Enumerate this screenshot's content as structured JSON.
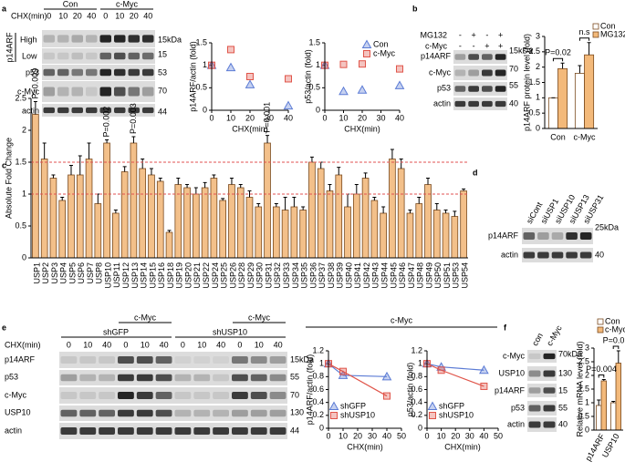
{
  "panel_labels": [
    "a",
    "b",
    "c",
    "d",
    "e",
    "f"
  ],
  "blots": {
    "a": {
      "groups": [
        "Con",
        "c-Myc"
      ],
      "chx_label": "CHX(min)",
      "lanes": [
        "0",
        "10",
        "20",
        "40",
        "0",
        "10",
        "20",
        "40"
      ],
      "row_group": "p14ARF",
      "rows": [
        "High",
        "Low",
        "p53",
        "c-Myc",
        "actin"
      ],
      "kda": [
        "15kDa",
        "15",
        "53",
        "70",
        "44"
      ]
    },
    "b": {
      "treatments": [
        {
          "label": "MG132",
          "signs": [
            "-",
            "+",
            "-",
            "+"
          ]
        },
        {
          "label": "c-Myc",
          "signs": [
            "-",
            "-",
            "+",
            "+"
          ]
        }
      ],
      "rows": [
        "p14ARF",
        "c-Myc",
        "p53",
        "actin"
      ],
      "kda": [
        "15kDa",
        "70",
        "55",
        "40"
      ]
    },
    "d": {
      "lanes": [
        "siCont",
        "siUSP1",
        "siUSP10",
        "siUSP13",
        "siUSP31"
      ],
      "rows": [
        "p14ARF",
        "actin"
      ],
      "kda": [
        "25kDa",
        "40"
      ]
    },
    "e": {
      "treatments": [
        "c-Myc",
        "c-Myc"
      ],
      "groups": [
        "shGFP",
        "shUSP10"
      ],
      "chx_label": "CHX(min)",
      "lanes": [
        "0",
        "10",
        "40",
        "0",
        "10",
        "40",
        "0",
        "10",
        "40",
        "0",
        "10",
        "40"
      ],
      "rows": [
        "p14ARF",
        "p53",
        "c-Myc",
        "USP10",
        "actin"
      ],
      "kda": [
        "15kDa",
        "55",
        "70",
        "130",
        "44"
      ],
      "chart_header": "c-Myc"
    },
    "f": {
      "lanes": [
        "con",
        "c-Myc"
      ],
      "rows": [
        "c-Myc",
        "USP10",
        "p14ARF",
        "p53",
        "actin"
      ],
      "kda": [
        "70kDa",
        "130",
        "15",
        "55",
        "40"
      ]
    }
  },
  "chart_data": [
    {
      "type": "scatter",
      "y_label": "p14ARF/actin (fold)",
      "x_label": "CHX(min)",
      "x": [
        0,
        10,
        20,
        40
      ],
      "series": [
        {
          "marker": "triangle",
          "color": "#5b7bd5",
          "values": [
            1,
            0.95,
            0.57,
            0.1
          ]
        },
        {
          "marker": "square",
          "color": "#e0554a",
          "values": [
            1,
            1.35,
            0.75,
            0.7
          ]
        }
      ],
      "xlim": [
        0,
        40
      ],
      "xticks": [
        0,
        10,
        20,
        30,
        40
      ],
      "ylim": [
        0,
        1.5
      ],
      "yticks": [
        0,
        0.5,
        1,
        1.5
      ]
    },
    {
      "type": "scatter",
      "y_label": "p53/actin (fold)",
      "x_label": "CHX(min)",
      "x": [
        0,
        10,
        20,
        40
      ],
      "series": [
        {
          "name": "Con",
          "marker": "triangle",
          "color": "#5b7bd5",
          "values": [
            1,
            0.42,
            0.45,
            0.55
          ]
        },
        {
          "name": "c-Myc",
          "marker": "square",
          "color": "#e0554a",
          "values": [
            1,
            1.02,
            1.03,
            0.92
          ]
        }
      ],
      "xlim": [
        0,
        40
      ],
      "xticks": [
        0,
        10,
        20,
        30,
        40
      ],
      "ylim": [
        0,
        1.5
      ],
      "yticks": [
        0,
        0.5,
        1,
        1.5
      ],
      "legend": "upper right"
    },
    {
      "type": "bar",
      "y_label": "p14ARF protein level (fold)",
      "categories": [
        "Con",
        "c-Myc"
      ],
      "series": [
        {
          "name": "Con",
          "color": "#ffffff",
          "values": [
            1,
            1.8
          ],
          "errors": [
            0,
            0.25
          ]
        },
        {
          "name": "MG132",
          "color": "#f3b97a",
          "values": [
            1.95,
            2.4
          ],
          "errors": [
            0.18,
            0.4
          ]
        }
      ],
      "ylim": [
        0,
        3
      ],
      "yticks": [
        0,
        0.5,
        1,
        1.5,
        2,
        2.5,
        3
      ],
      "legend": "upper right",
      "annotations": [
        {
          "text": "P=0.02",
          "category": "Con"
        },
        {
          "text": "n.s",
          "category": "c-Myc"
        }
      ]
    },
    {
      "type": "bar",
      "y_label": "Absolute Fold Change",
      "color": "#f3c08a",
      "categories": [
        "USP1",
        "USP2",
        "USP3",
        "USP4",
        "USP5",
        "USP6",
        "USP7",
        "USP8",
        "USP10",
        "USP11",
        "USP12",
        "USP13",
        "USP14",
        "USP15",
        "USP16",
        "USP18",
        "USP19",
        "USP20",
        "USP21",
        "USP22",
        "USP24",
        "USP25",
        "USP26",
        "USP28",
        "USP29",
        "USP30",
        "USP31",
        "USP32",
        "USP33",
        "USP34",
        "USP35",
        "USP36",
        "USP37",
        "USP38",
        "USP39",
        "USP40",
        "USP41",
        "USP42",
        "USP43",
        "USP44",
        "USP45",
        "USP46",
        "USP47",
        "USP48",
        "USP49",
        "USP50",
        "USP51",
        "USP53",
        "USP54"
      ],
      "values": [
        2.25,
        1.55,
        1.25,
        0.9,
        1.3,
        1.3,
        1.55,
        0.85,
        1.8,
        0.7,
        1.35,
        1.8,
        1.4,
        1.3,
        1.2,
        0.4,
        1.15,
        1.1,
        1.0,
        1.1,
        1.25,
        0.9,
        1.15,
        1.1,
        0.95,
        0.8,
        1.8,
        0.8,
        0.75,
        0.8,
        0.75,
        1.5,
        1.4,
        1.05,
        1.3,
        0.8,
        1.0,
        1.25,
        0.9,
        0.7,
        1.55,
        1.4,
        0.7,
        0.85,
        1.15,
        0.75,
        0.7,
        0.65,
        1.05
      ],
      "errors": [
        0.2,
        0.25,
        0.05,
        0.05,
        0.15,
        0.3,
        0.25,
        0.15,
        0.05,
        0.05,
        0.08,
        0.1,
        0.15,
        0.1,
        0.05,
        0.03,
        0.1,
        0.05,
        0.1,
        0.08,
        0.05,
        0.03,
        0.1,
        0.05,
        0.1,
        0.05,
        0.12,
        0.05,
        0.2,
        0.15,
        0.05,
        0.08,
        0.1,
        0.1,
        0.12,
        0.2,
        0.15,
        0.08,
        0.05,
        0.1,
        0.15,
        0.15,
        0.05,
        0.1,
        0.1,
        0.1,
        0.05,
        0.08,
        0.03
      ],
      "ylim": [
        0,
        2.5
      ],
      "yticks": [
        0,
        0.5,
        1,
        1.5,
        2,
        2.5
      ],
      "reference_lines": [
        {
          "value": 1.5,
          "color": "#e05050"
        },
        {
          "value": 1,
          "color": "#e05050"
        }
      ],
      "annotations": [
        {
          "text": "P=0.009",
          "category": "USP1"
        },
        {
          "text": "P=0.002",
          "category": "USP10"
        },
        {
          "text": "P=0.003",
          "category": "USP13"
        },
        {
          "text": "P=0.001",
          "category": "USP31"
        }
      ]
    },
    {
      "type": "scatter",
      "y_label": "p14ARF/actin (fold)",
      "x_label": "CHX(min)",
      "x": [
        0,
        10,
        40
      ],
      "connect": true,
      "series": [
        {
          "name": "shGFP",
          "marker": "triangle",
          "color": "#5b7bd5",
          "values": [
            1,
            0.82,
            0.8
          ]
        },
        {
          "name": "shUSP10",
          "marker": "square",
          "color": "#e0554a",
          "values": [
            1,
            0.88,
            0.5
          ]
        }
      ],
      "xlim": [
        0,
        50
      ],
      "xticks": [
        0,
        10,
        20,
        30,
        40,
        50
      ],
      "ylim": [
        0,
        1.2
      ],
      "yticks": [
        0,
        0.2,
        0.4,
        0.6,
        0.8,
        1,
        1.2
      ],
      "legend": "lower left"
    },
    {
      "type": "scatter",
      "y_label": "p53/actin (fold)",
      "x_label": "CHX(min)",
      "x": [
        0,
        10,
        40
      ],
      "connect": true,
      "series": [
        {
          "name": "shGFP",
          "marker": "triangle",
          "color": "#5b7bd5",
          "values": [
            1,
            0.95,
            0.9
          ]
        },
        {
          "name": "shUSP10",
          "marker": "square",
          "color": "#e0554a",
          "values": [
            1,
            0.9,
            0.65
          ]
        }
      ],
      "xlim": [
        0,
        50
      ],
      "xticks": [
        0,
        10,
        20,
        30,
        40,
        50
      ],
      "ylim": [
        0,
        1.2
      ],
      "yticks": [
        0,
        0.2,
        0.4,
        0.6,
        0.8,
        1,
        1.2
      ],
      "legend": "lower left"
    },
    {
      "type": "bar",
      "y_label": "Relative mRNA level (fold)",
      "categories": [
        "p14ARF",
        "USP10"
      ],
      "series": [
        {
          "name": "Con",
          "color": "#ffffff",
          "values": [
            0.9,
            1
          ],
          "errors": [
            0.2,
            0.05
          ]
        },
        {
          "name": "c-Myc",
          "color": "#f3b97a",
          "values": [
            1.8,
            2.45
          ],
          "errors": [
            0.05,
            0.45
          ]
        }
      ],
      "ylim": [
        0,
        3
      ],
      "yticks": [
        0,
        0.5,
        1,
        1.5,
        2,
        2.5,
        3
      ],
      "legend": "upper right",
      "annotations": [
        {
          "text": "P=0.004",
          "category": "p14ARF"
        },
        {
          "text": "P=0.01",
          "category": "USP10"
        }
      ]
    }
  ]
}
